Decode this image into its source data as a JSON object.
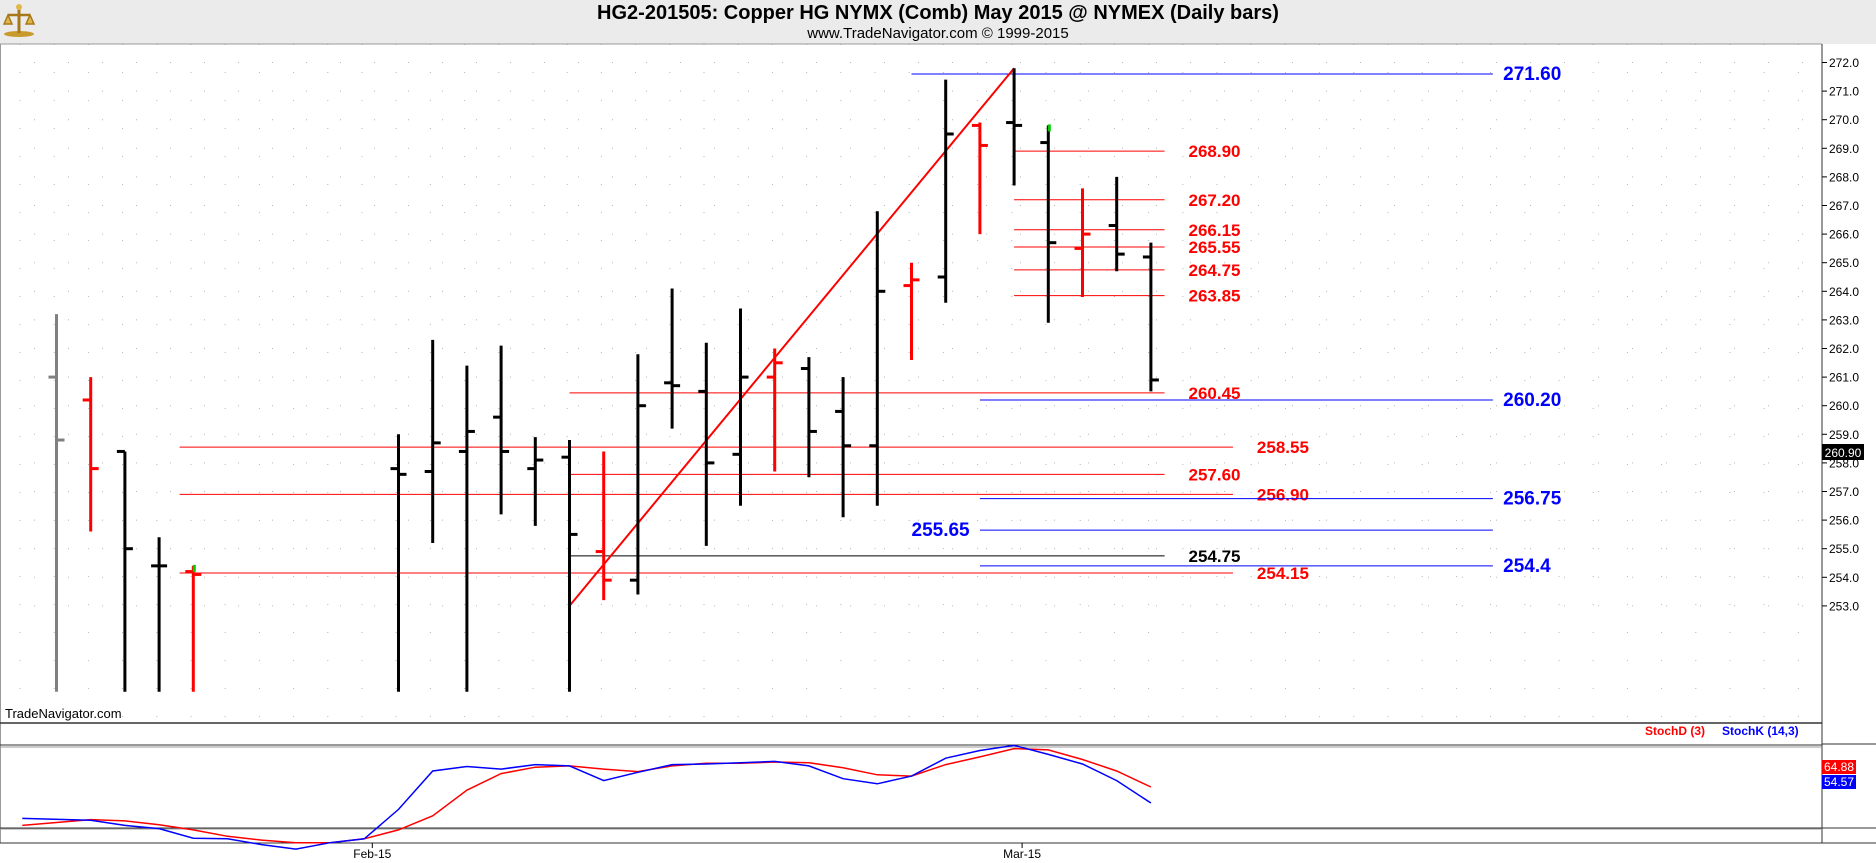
{
  "header": {
    "title": "HG2-201505:  Copper HG NYMX (Comb) May 2015 @ NYMEX  (Daily bars)",
    "subtitle": "www.TradeNavigator.com © 1999-2015",
    "watermark": "TradeNavigator.com"
  },
  "chart_data": {
    "type": "ohlc",
    "y_ticks": [
      "272.0",
      "271.0",
      "270.0",
      "269.0",
      "268.0",
      "267.0",
      "266.0",
      "265.0",
      "264.0",
      "263.0",
      "262.0",
      "261.0",
      "260.0",
      "259.0",
      "258.0",
      "257.0",
      "256.0",
      "255.0",
      "254.0",
      "253.0"
    ],
    "x_ticks": [
      {
        "label": "Feb-15",
        "day": 9
      },
      {
        "label": "Mar-15",
        "day": 28
      }
    ],
    "last_price": "260.90",
    "bars": [
      {
        "d": 0,
        "h": 263.2,
        "l": 250.0,
        "o": 261.0,
        "c": 258.8,
        "color": "gray"
      },
      {
        "d": 1,
        "h": 261.0,
        "l": 255.6,
        "o": 260.2,
        "c": 257.8,
        "color": "red"
      },
      {
        "d": 2,
        "h": 258.4,
        "l": 250.0,
        "o": 258.4,
        "c": 255.0,
        "color": "black"
      },
      {
        "d": 3,
        "h": 255.4,
        "l": 250.0,
        "o": 254.4,
        "c": 254.4,
        "color": "black"
      },
      {
        "d": 4,
        "h": 254.4,
        "l": 250.0,
        "o": 254.2,
        "c": 254.1,
        "color": "red"
      },
      {
        "d": 10,
        "h": 259.0,
        "l": 250.0,
        "o": 257.8,
        "c": 257.6,
        "color": "black"
      },
      {
        "d": 11,
        "h": 262.3,
        "l": 255.2,
        "o": 257.7,
        "c": 258.7,
        "color": "black"
      },
      {
        "d": 12,
        "h": 261.4,
        "l": 250.0,
        "o": 258.4,
        "c": 259.1,
        "color": "black"
      },
      {
        "d": 13,
        "h": 262.1,
        "l": 256.2,
        "o": 259.6,
        "c": 258.4,
        "color": "black"
      },
      {
        "d": 14,
        "h": 258.9,
        "l": 255.8,
        "o": 257.8,
        "c": 258.1,
        "color": "black"
      },
      {
        "d": 15,
        "h": 258.8,
        "l": 250.0,
        "o": 258.2,
        "c": 255.5,
        "color": "black"
      },
      {
        "d": 16,
        "h": 258.4,
        "l": 253.2,
        "o": 254.9,
        "c": 253.9,
        "color": "red"
      },
      {
        "d": 17,
        "h": 261.8,
        "l": 253.4,
        "o": 253.9,
        "c": 260.0,
        "color": "black"
      },
      {
        "d": 18,
        "h": 264.1,
        "l": 259.2,
        "o": 260.8,
        "c": 260.7,
        "color": "black"
      },
      {
        "d": 19,
        "h": 262.2,
        "l": 255.1,
        "o": 260.5,
        "c": 258.0,
        "color": "black"
      },
      {
        "d": 20,
        "h": 263.4,
        "l": 256.5,
        "o": 258.3,
        "c": 261.0,
        "color": "black"
      },
      {
        "d": 21,
        "h": 262.0,
        "l": 257.7,
        "o": 261.0,
        "c": 261.5,
        "color": "red"
      },
      {
        "d": 22,
        "h": 261.7,
        "l": 257.5,
        "o": 261.3,
        "c": 259.1,
        "color": "black"
      },
      {
        "d": 23,
        "h": 261.0,
        "l": 256.1,
        "o": 259.8,
        "c": 258.6,
        "color": "black"
      },
      {
        "d": 24,
        "h": 266.8,
        "l": 256.5,
        "o": 258.6,
        "c": 264.0,
        "color": "black"
      },
      {
        "d": 25,
        "h": 265.0,
        "l": 261.6,
        "o": 264.2,
        "c": 264.4,
        "color": "red"
      },
      {
        "d": 26,
        "h": 271.4,
        "l": 263.6,
        "o": 264.5,
        "c": 269.5,
        "color": "black"
      },
      {
        "d": 27,
        "h": 269.9,
        "l": 266.0,
        "o": 269.8,
        "c": 269.1,
        "color": "red"
      },
      {
        "d": 28,
        "h": 271.8,
        "l": 267.7,
        "o": 269.9,
        "c": 269.8,
        "color": "black"
      },
      {
        "d": 29,
        "h": 269.8,
        "l": 262.9,
        "o": 269.2,
        "c": 265.7,
        "color": "black"
      },
      {
        "d": 30,
        "h": 267.6,
        "l": 263.8,
        "o": 265.5,
        "c": 266.0,
        "color": "red"
      },
      {
        "d": 31,
        "h": 268.0,
        "l": 264.7,
        "o": 266.3,
        "c": 265.3,
        "color": "black"
      },
      {
        "d": 32,
        "h": 265.7,
        "l": 260.5,
        "o": 265.2,
        "c": 260.9,
        "color": "black"
      }
    ],
    "trendline": {
      "d1": 15,
      "v1": 253.0,
      "d2": 28,
      "v2": 271.8
    },
    "levels_red": [
      {
        "value": 268.9,
        "label": "268.90",
        "d1": 28,
        "d2": 32.4,
        "ld": 33.1
      },
      {
        "value": 267.2,
        "label": "267.20",
        "d1": 28,
        "d2": 32.4,
        "ld": 33.1
      },
      {
        "value": 266.15,
        "label": "266.15",
        "d1": 28,
        "d2": 32.4,
        "ld": 33.1
      },
      {
        "value": 265.55,
        "label": "265.55",
        "d1": 28,
        "d2": 32.4,
        "ld": 33.1
      },
      {
        "value": 264.75,
        "label": "264.75",
        "d1": 28,
        "d2": 32.4,
        "ld": 33.1
      },
      {
        "value": 263.85,
        "label": "263.85",
        "d1": 28,
        "d2": 32.4,
        "ld": 33.1
      },
      {
        "value": 260.45,
        "label": "260.45",
        "d1": 15,
        "d2": 32.4,
        "ld": 33.1
      },
      {
        "value": 258.55,
        "label": "258.55",
        "d1": 3.6,
        "d2": 34.4,
        "ld": 35.1
      },
      {
        "value": 257.6,
        "label": "257.60",
        "d1": 15,
        "d2": 32.4,
        "ld": 33.1
      },
      {
        "value": 256.9,
        "label": "256.90",
        "d1": 3.6,
        "d2": 34.4,
        "ld": 35.1
      },
      {
        "value": 254.15,
        "label": "254.15",
        "d1": 3.6,
        "d2": 34.4,
        "ld": 35.1
      }
    ],
    "levels_black": [
      {
        "value": 254.75,
        "label": "254.75",
        "d1": 15,
        "d2": 32.4,
        "ld": 33.1
      }
    ],
    "levels_blue": [
      {
        "value": 271.6,
        "label": "271.60",
        "d1": 25,
        "d2": 42.0,
        "ld": 42.3,
        "anchor": "start"
      },
      {
        "value": 260.2,
        "label": "260.20",
        "d1": 27,
        "d2": 42.0,
        "ld": 42.3,
        "anchor": "start"
      },
      {
        "value": 256.75,
        "label": "256.75",
        "d1": 27,
        "d2": 42.0,
        "ld": 42.3,
        "anchor": "start"
      },
      {
        "value": 255.65,
        "label": "255.65",
        "d1": 27,
        "d2": 42.0,
        "ld": 26.7,
        "anchor": "end"
      },
      {
        "value": 254.4,
        "label": "254.4",
        "d1": 27,
        "d2": 42.0,
        "ld": 42.3,
        "anchor": "start"
      }
    ],
    "stochastic": {
      "label_d": "StochD (3)",
      "label_k": "StochK (14,3)",
      "value_d": "64.88",
      "value_k": "54.57",
      "k": [
        [
          -1,
          26
        ],
        [
          1,
          23
        ],
        [
          2,
          15
        ],
        [
          3,
          10
        ],
        [
          4,
          -5
        ],
        [
          5,
          -6
        ],
        [
          6,
          -15
        ],
        [
          7,
          -22
        ],
        [
          8,
          -12
        ],
        [
          9,
          -6
        ],
        [
          10,
          40
        ],
        [
          11,
          100
        ],
        [
          12,
          107
        ],
        [
          13,
          103
        ],
        [
          14,
          110
        ],
        [
          15,
          108
        ],
        [
          16,
          85
        ],
        [
          17,
          98
        ],
        [
          18,
          110
        ],
        [
          19,
          111
        ],
        [
          20,
          113
        ],
        [
          21,
          115
        ],
        [
          22,
          108
        ],
        [
          23,
          88
        ],
        [
          24,
          80
        ],
        [
          25,
          92
        ],
        [
          26,
          120
        ],
        [
          27,
          132
        ],
        [
          28,
          140
        ],
        [
          29,
          126
        ],
        [
          30,
          111
        ],
        [
          31,
          85
        ],
        [
          32,
          50
        ]
      ],
      "d": [
        [
          -1,
          15
        ],
        [
          1,
          24
        ],
        [
          2,
          22
        ],
        [
          3,
          16
        ],
        [
          4,
          8
        ],
        [
          5,
          -2
        ],
        [
          6,
          -8
        ],
        [
          7,
          -12
        ],
        [
          8,
          -12
        ],
        [
          9,
          -6
        ],
        [
          10,
          8
        ],
        [
          11,
          30
        ],
        [
          12,
          70
        ],
        [
          13,
          96
        ],
        [
          14,
          106
        ],
        [
          15,
          108
        ],
        [
          16,
          103
        ],
        [
          17,
          99
        ],
        [
          18,
          108
        ],
        [
          19,
          112
        ],
        [
          20,
          112
        ],
        [
          21,
          114
        ],
        [
          22,
          113
        ],
        [
          23,
          105
        ],
        [
          24,
          94
        ],
        [
          25,
          92
        ],
        [
          26,
          110
        ],
        [
          27,
          122
        ],
        [
          28,
          135
        ],
        [
          29,
          133
        ],
        [
          30,
          118
        ],
        [
          31,
          100
        ],
        [
          32,
          75
        ]
      ]
    }
  }
}
